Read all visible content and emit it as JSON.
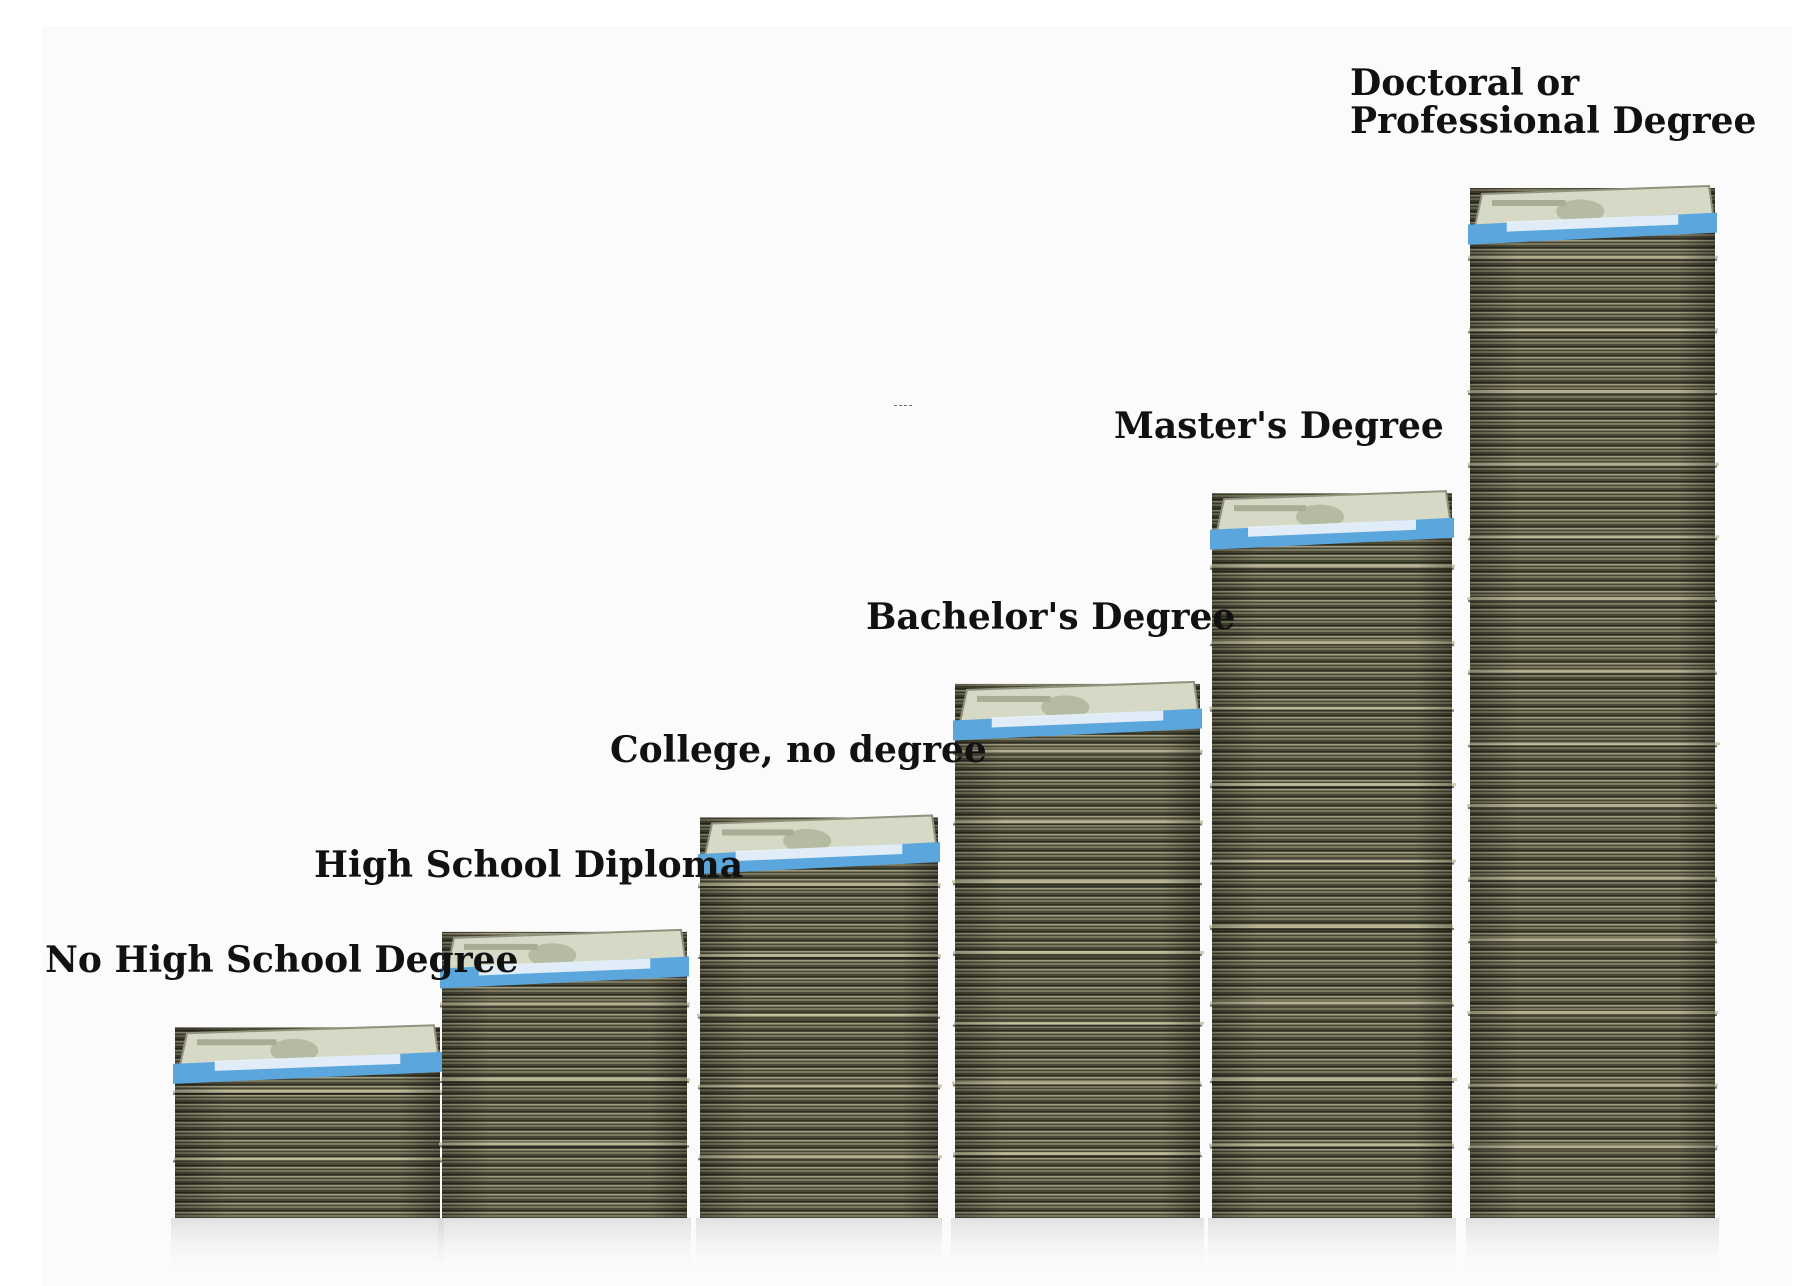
{
  "chart_data": {
    "type": "bar",
    "title": "",
    "xlabel": "",
    "ylabel": "",
    "categories": [
      "No High School Degree",
      "High School Diploma",
      "College, no degree",
      "Bachelor's Degree",
      "Master's Degree",
      "Doctoral or Professional Degree"
    ],
    "label_lines": [
      [
        "No High School Degree"
      ],
      [
        "High School Diploma"
      ],
      [
        "College, no degree"
      ],
      [
        "Bachelor's Degree"
      ],
      [
        "Master's Degree"
      ],
      [
        "Doctoral or",
        "Professional Degree"
      ]
    ],
    "values": [
      1.0,
      1.5,
      2.1,
      2.8,
      3.8,
      5.4
    ],
    "value_note_unit": "relative stack height",
    "grid": false,
    "legend": "none",
    "colors": {
      "bill_dark": "#3e3d2e",
      "bill_mid": "#5d5b45",
      "bill_light": "#8a8770",
      "bill_edge": "#c9c4a3",
      "band_blue": "#5ba7dd",
      "band_white": "#eef5fb",
      "bill_face": "#d6d9c6"
    }
  }
}
